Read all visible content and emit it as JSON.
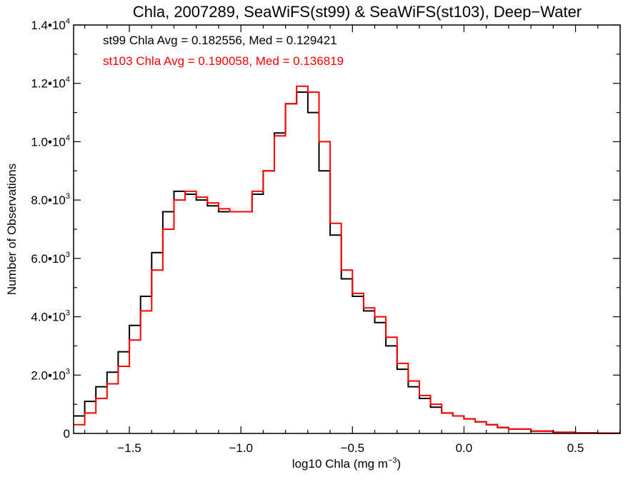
{
  "chart_data": {
    "type": "line",
    "title": "Chla, 2007289, SeaWiFS(st99) & SeaWiFS(st103), Deep−Water",
    "xlabel": "log10 Chla (mg m",
    "xlabel_exp": "−3",
    "xlabel_close": ")",
    "ylabel": "Number of Observations",
    "xlim": [
      -1.75,
      0.7
    ],
    "ylim": [
      0,
      14000
    ],
    "x_ticks": [
      {
        "value": -1.5,
        "label": "−1.5"
      },
      {
        "value": -1.0,
        "label": "−1.0"
      },
      {
        "value": -0.5,
        "label": "−0.5"
      },
      {
        "value": 0.0,
        "label": "0.0"
      },
      {
        "value": 0.5,
        "label": "0.5"
      }
    ],
    "y_ticks": [
      {
        "value": 0,
        "mant": "0",
        "exp": ""
      },
      {
        "value": 2000,
        "mant": "2.0•10",
        "exp": "3"
      },
      {
        "value": 4000,
        "mant": "4.0•10",
        "exp": "3"
      },
      {
        "value": 6000,
        "mant": "6.0•10",
        "exp": "3"
      },
      {
        "value": 8000,
        "mant": "8.0•10",
        "exp": "3"
      },
      {
        "value": 10000,
        "mant": "1.0•10",
        "exp": "4"
      },
      {
        "value": 12000,
        "mant": "1.2•10",
        "exp": "4"
      },
      {
        "value": 14000,
        "mant": "1.4•10",
        "exp": "4"
      }
    ],
    "annotations": [
      {
        "text": "st99 Chla Avg = 0.182556, Med = 0.129421",
        "color": "#000000"
      },
      {
        "text": "st103 Chla Avg = 0.190058, Med = 0.136819",
        "color": "#ff0000"
      }
    ],
    "series": [
      {
        "color": "#000000",
        "x": [
          -1.75,
          -1.7,
          -1.65,
          -1.6,
          -1.55,
          -1.5,
          -1.45,
          -1.4,
          -1.35,
          -1.3,
          -1.25,
          -1.2,
          -1.15,
          -1.1,
          -1.05,
          -1.0,
          -0.95,
          -0.9,
          -0.85,
          -0.8,
          -0.75,
          -0.7,
          -0.65,
          -0.6,
          -0.55,
          -0.5,
          -0.45,
          -0.4,
          -0.35,
          -0.3,
          -0.25,
          -0.2,
          -0.15,
          -0.1,
          -0.05,
          0.0,
          0.05,
          0.1,
          0.15,
          0.2,
          0.3,
          0.4,
          0.5,
          0.6,
          0.7
        ],
        "y": [
          600,
          1100,
          1600,
          2100,
          2800,
          3700,
          4700,
          6200,
          7600,
          8300,
          8200,
          8000,
          7800,
          7600,
          7600,
          7600,
          8200,
          9000,
          10300,
          11300,
          11700,
          11000,
          9000,
          6800,
          5300,
          4700,
          4200,
          3800,
          3000,
          2200,
          1600,
          1200,
          900,
          700,
          600,
          500,
          400,
          300,
          200,
          150,
          80,
          40,
          20,
          10,
          0
        ]
      },
      {
        "color": "#ff0000",
        "x": [
          -1.75,
          -1.7,
          -1.65,
          -1.6,
          -1.55,
          -1.5,
          -1.45,
          -1.4,
          -1.35,
          -1.3,
          -1.25,
          -1.2,
          -1.15,
          -1.1,
          -1.05,
          -1.0,
          -0.95,
          -0.9,
          -0.85,
          -0.8,
          -0.75,
          -0.7,
          -0.65,
          -0.6,
          -0.55,
          -0.5,
          -0.45,
          -0.4,
          -0.35,
          -0.3,
          -0.25,
          -0.2,
          -0.15,
          -0.1,
          -0.05,
          0.0,
          0.05,
          0.1,
          0.15,
          0.2,
          0.3,
          0.4,
          0.5,
          0.6,
          0.7
        ],
        "y": [
          300,
          700,
          1200,
          1700,
          2300,
          3200,
          4200,
          5600,
          7000,
          8000,
          8300,
          8100,
          7900,
          7700,
          7600,
          7600,
          8300,
          9000,
          10200,
          11300,
          11900,
          11700,
          10000,
          7200,
          5600,
          4800,
          4300,
          4000,
          3300,
          2400,
          1800,
          1300,
          1000,
          700,
          600,
          500,
          400,
          300,
          200,
          150,
          80,
          40,
          20,
          10,
          0
        ]
      }
    ]
  }
}
